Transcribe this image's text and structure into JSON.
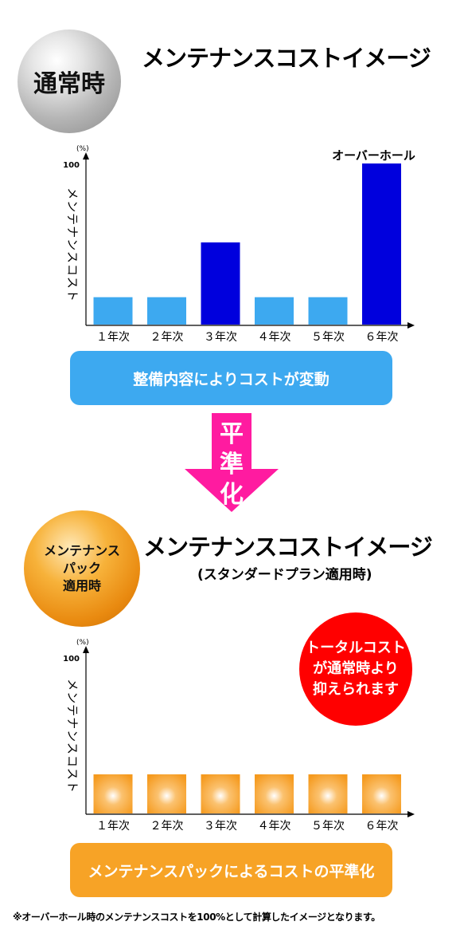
{
  "top": {
    "badge": "通常時",
    "title": "メンテナンスコストイメージ",
    "banner": "整備内容によりコストが変動"
  },
  "arrow_label": [
    "平",
    "準",
    "化"
  ],
  "bottom": {
    "badge_lines": [
      "メンテナンス",
      "パック",
      "適用時"
    ],
    "title": "メンテナンスコストイメージ",
    "subtitle": "(スタンダードプラン適用時)",
    "callout_lines": [
      "トータルコスト",
      "が通常時より",
      "抑えられます"
    ],
    "banner": "メンテナンスパックによるコストの平準化"
  },
  "footnote": "※オーバーホール時のメンテナンスコストを100%として計算したイメージとなります。",
  "colors": {
    "light_blue_bar": "#3da9f0",
    "dark_blue_bar": "#0000dd",
    "blue_banner": "#3da9f0",
    "orange_banner": "#f7a326",
    "orange_bar": "#f59a1e",
    "arrow": "#ff1ba0",
    "callout": "#ff0000"
  },
  "chart_data": [
    {
      "type": "bar",
      "categories": [
        "１年次",
        "２年次",
        "３年次",
        "４年次",
        "５年次",
        "６年次"
      ],
      "values": [
        17,
        17,
        51,
        17,
        17,
        100
      ],
      "highlight": [
        false,
        false,
        true,
        false,
        false,
        true
      ],
      "annotation": {
        "text": "オーバーホール",
        "category": "６年次"
      },
      "ylabel": "メンテナンスコスト",
      "yunit": "(%)",
      "ytick": "100",
      "ylim": [
        0,
        100
      ],
      "grid": false
    },
    {
      "type": "bar",
      "categories": [
        "１年次",
        "２年次",
        "３年次",
        "４年次",
        "５年次",
        "６年次"
      ],
      "values": [
        25,
        25,
        25,
        25,
        25,
        25
      ],
      "ylabel": "メンテナンスコスト",
      "yunit": "(%)",
      "ytick": "100",
      "ylim": [
        0,
        100
      ],
      "grid": false
    }
  ]
}
